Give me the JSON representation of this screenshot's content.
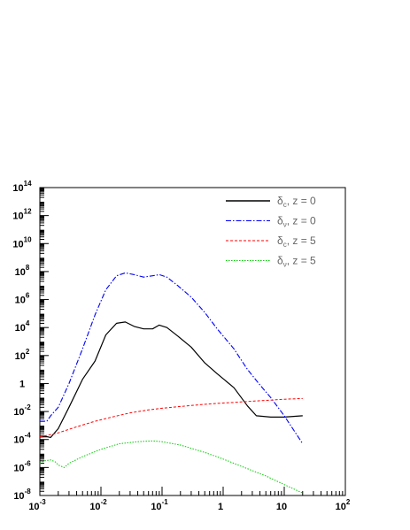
{
  "chart_data": {
    "type": "line",
    "title": "",
    "xlabel": "",
    "ylabel": "",
    "x_scale": "log",
    "y_scale": "log",
    "xlim": [
      0.001,
      100
    ],
    "ylim": [
      1e-08,
      100000000000000.0
    ],
    "grid": false,
    "legend_position": "top-right",
    "x_ticks": [
      {
        "value": 0.001,
        "base": "10",
        "exp": "-3"
      },
      {
        "value": 0.01,
        "base": "10",
        "exp": "-2"
      },
      {
        "value": 0.1,
        "base": "10",
        "exp": "-1"
      },
      {
        "value": 1,
        "base": "1",
        "exp": ""
      },
      {
        "value": 10,
        "base": "10",
        "exp": ""
      },
      {
        "value": 100,
        "base": "10",
        "exp": "2"
      }
    ],
    "y_ticks": [
      {
        "value": 1e-08,
        "base": "10",
        "exp": "-8"
      },
      {
        "value": 1e-06,
        "base": "10",
        "exp": "-6"
      },
      {
        "value": 0.0001,
        "base": "10",
        "exp": "-4"
      },
      {
        "value": 0.01,
        "base": "10",
        "exp": "-2"
      },
      {
        "value": 1,
        "base": "1",
        "exp": ""
      },
      {
        "value": 100.0,
        "base": "10",
        "exp": "2"
      },
      {
        "value": 10000.0,
        "base": "10",
        "exp": "4"
      },
      {
        "value": 1000000.0,
        "base": "10",
        "exp": "6"
      },
      {
        "value": 100000000.0,
        "base": "10",
        "exp": "8"
      },
      {
        "value": 10000000000.0,
        "base": "10",
        "exp": "10"
      },
      {
        "value": 1000000000000.0,
        "base": "10",
        "exp": "12"
      },
      {
        "value": 100000000000000.0,
        "base": "10",
        "exp": "14"
      }
    ],
    "series": [
      {
        "name_symbol": "δ",
        "name_sub": "c",
        "name_rest": ", z = 0",
        "color": "#000000",
        "dash": "",
        "width": 1.2,
        "x": [
          0.001,
          0.0013,
          0.0015,
          0.002,
          0.003,
          0.005,
          0.008,
          0.012,
          0.018,
          0.025,
          0.035,
          0.05,
          0.07,
          0.09,
          0.12,
          0.18,
          0.3,
          0.5,
          0.8,
          1.5,
          2.5,
          3.5,
          6,
          10,
          20
        ],
        "y": [
          0.00015,
          0.00016,
          0.00014,
          0.0006,
          0.02,
          2,
          40,
          3000,
          20000,
          25000,
          12000,
          8000,
          8000,
          15000,
          10000,
          2500,
          400,
          30,
          5,
          0.5,
          0.025,
          0.005,
          0.004,
          0.004,
          0.005
        ]
      },
      {
        "name_symbol": "δ",
        "name_sub": "ν",
        "name_rest": ", z = 0",
        "color": "#0000ff",
        "dash": "6,2,1.5,2",
        "width": 1.1,
        "x": [
          0.001,
          0.0013,
          0.0015,
          0.002,
          0.003,
          0.005,
          0.008,
          0.012,
          0.018,
          0.025,
          0.035,
          0.05,
          0.07,
          0.09,
          0.12,
          0.18,
          0.3,
          0.5,
          0.8,
          1.5,
          2.5,
          4,
          6,
          10,
          20
        ],
        "y": [
          0.002,
          0.002,
          0.005,
          0.02,
          1,
          300,
          80000,
          5000000,
          50000000,
          80000000,
          60000000,
          40000000,
          50000000,
          60000000,
          40000000,
          10000000,
          1500000,
          120000,
          8000,
          300,
          10,
          0.8,
          0.1,
          0.005,
          5e-05
        ]
      },
      {
        "name_symbol": "δ",
        "name_sub": "c",
        "name_rest": ", z = 5",
        "color": "#ff0000",
        "dash": "3,2",
        "width": 1.0,
        "x": [
          0.001,
          0.002,
          0.004,
          0.008,
          0.015,
          0.03,
          0.06,
          0.1,
          0.2,
          0.4,
          0.8,
          1.5,
          3,
          6,
          10,
          20
        ],
        "y": [
          0.00015,
          0.0003,
          0.0008,
          0.002,
          0.004,
          0.008,
          0.013,
          0.017,
          0.023,
          0.03,
          0.038,
          0.045,
          0.055,
          0.065,
          0.075,
          0.085
        ]
      },
      {
        "name_symbol": "δ",
        "name_sub": "ν",
        "name_rest": ", z = 5",
        "color": "#00cc00",
        "dash": "1.5,1.5",
        "width": 1.0,
        "x": [
          0.001,
          0.0012,
          0.0015,
          0.0018,
          0.002,
          0.0025,
          0.003,
          0.005,
          0.01,
          0.02,
          0.04,
          0.07,
          0.1,
          0.2,
          0.5,
          1,
          2,
          5,
          10,
          20
        ],
        "y": [
          2e-06,
          3e-06,
          3.5e-06,
          2.5e-06,
          1.5e-06,
          1e-06,
          2e-06,
          6e-06,
          2e-05,
          5e-05,
          7e-05,
          8e-05,
          7e-05,
          4e-05,
          1.2e-05,
          4e-06,
          1.2e-06,
          2.5e-07,
          6e-08,
          1.5e-08
        ]
      }
    ]
  }
}
